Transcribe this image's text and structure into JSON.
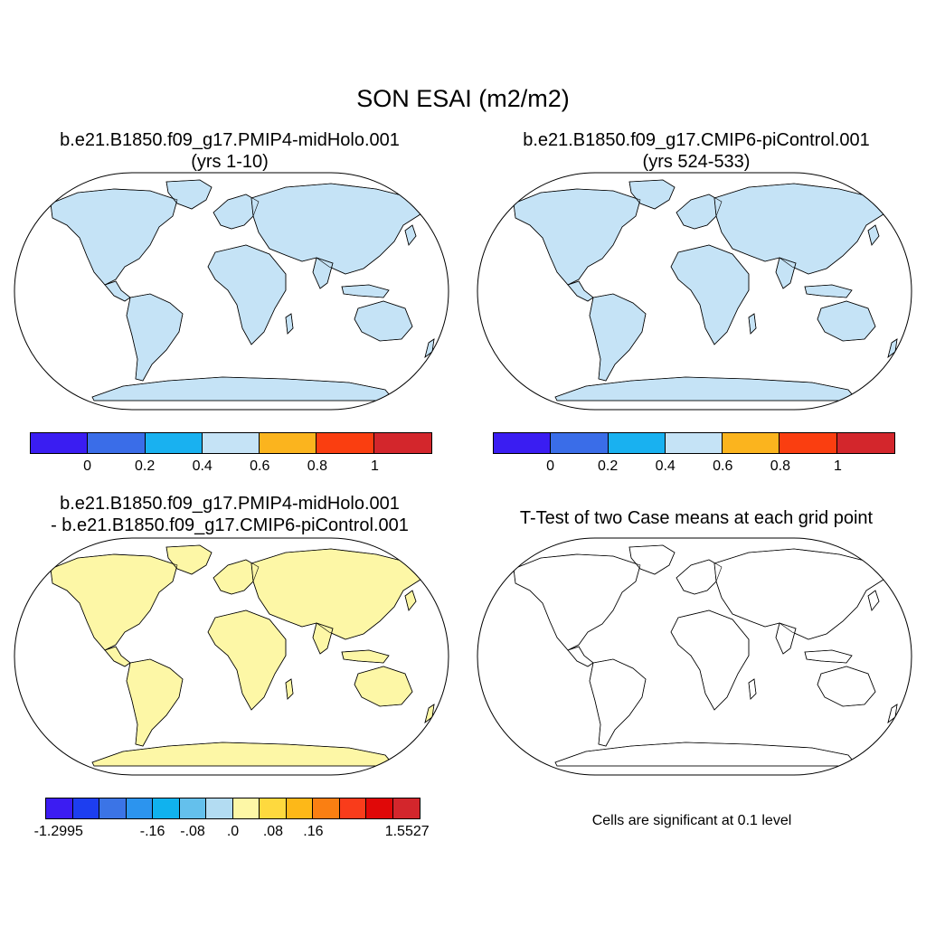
{
  "title": "SON ESAI (m2/m2)",
  "panels": [
    {
      "title_line1": "b.e21.B1850.f09_g17.PMIP4-midHolo.001",
      "title_line2": "(yrs 1-10)"
    },
    {
      "title_line1": "b.e21.B1850.f09_g17.CMIP6-piControl.001",
      "title_line2": "(yrs 524-533)"
    },
    {
      "title_line1": "b.e21.B1850.f09_g17.PMIP4-midHolo.001",
      "title_line2": "- b.e21.B1850.f09_g17.CMIP6-piControl.001"
    },
    {
      "title_line1": "T-Test of two Case means at each grid point",
      "title_line2": ""
    }
  ],
  "colorbar_main": {
    "colors": [
      "#3a1df2",
      "#3a6de8",
      "#19b1f0",
      "#c5e3f6",
      "#fbb41e",
      "#fa3e10",
      "#d3262c"
    ],
    "labels": [
      "0",
      "0.2",
      "0.4",
      "0.6",
      "0.8",
      "1"
    ]
  },
  "colorbar_diff": {
    "colors": [
      "#3c1cf2",
      "#1d3ef0",
      "#3b74e6",
      "#2c94ee",
      "#10b2ee",
      "#64c0ec",
      "#b3dcf2",
      "#fdf7a6",
      "#fed93e",
      "#fdb818",
      "#fa7f12",
      "#f93c1b",
      "#e00808",
      "#d3262c"
    ],
    "labels": [
      "-1.2995",
      "-.16",
      "-.08",
      ".0",
      ".08",
      ".16",
      "1.5527"
    ]
  },
  "significance_note": "Cells are significant at 0.1 level"
}
